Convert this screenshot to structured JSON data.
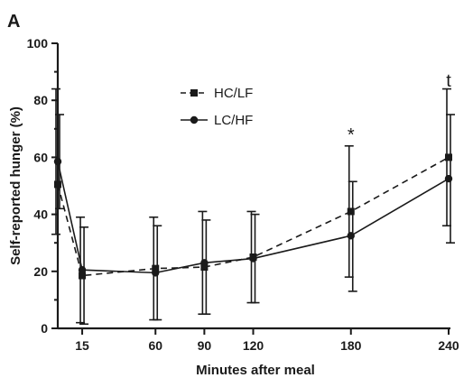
{
  "chart_data": {
    "type": "line",
    "panel_label": "A",
    "xlabel": "Minutes after meal",
    "ylabel": "Self-reported hunger (%)",
    "x": [
      0,
      15,
      60,
      90,
      120,
      180,
      240
    ],
    "x_tick_labels": [
      "",
      "15",
      "60",
      "90",
      "120",
      "180",
      "240"
    ],
    "xlim": [
      0,
      240
    ],
    "ylim": [
      0,
      100
    ],
    "y_ticks": [
      0,
      20,
      40,
      60,
      80,
      100
    ],
    "y_tick_labels": [
      "0",
      "20",
      "40",
      "60",
      "80",
      "100"
    ],
    "grid": false,
    "legend_position": "top-center",
    "series": [
      {
        "name": "HC/LF",
        "marker": "square",
        "line_style": "dashed",
        "color": "#1a1a1a",
        "values": [
          50.5,
          18.5,
          21,
          21.5,
          25,
          41,
          60
        ],
        "err_low": [
          33,
          2,
          3,
          5,
          9,
          18,
          36
        ],
        "err_high": [
          84,
          39,
          39,
          41,
          41,
          64,
          84
        ]
      },
      {
        "name": "LC/HF",
        "marker": "circle",
        "line_style": "solid",
        "color": "#1a1a1a",
        "values": [
          58.5,
          20.5,
          19.5,
          23,
          24.5,
          32.5,
          52.5
        ],
        "err_low": [
          42,
          1.5,
          3,
          5,
          9,
          13,
          30
        ],
        "err_high": [
          75,
          35.5,
          36,
          38,
          40,
          51.5,
          75
        ]
      }
    ],
    "annotations": [
      {
        "x": 180,
        "y": 69,
        "text": "*"
      },
      {
        "x": 240,
        "y": 88,
        "text": "t"
      }
    ]
  }
}
